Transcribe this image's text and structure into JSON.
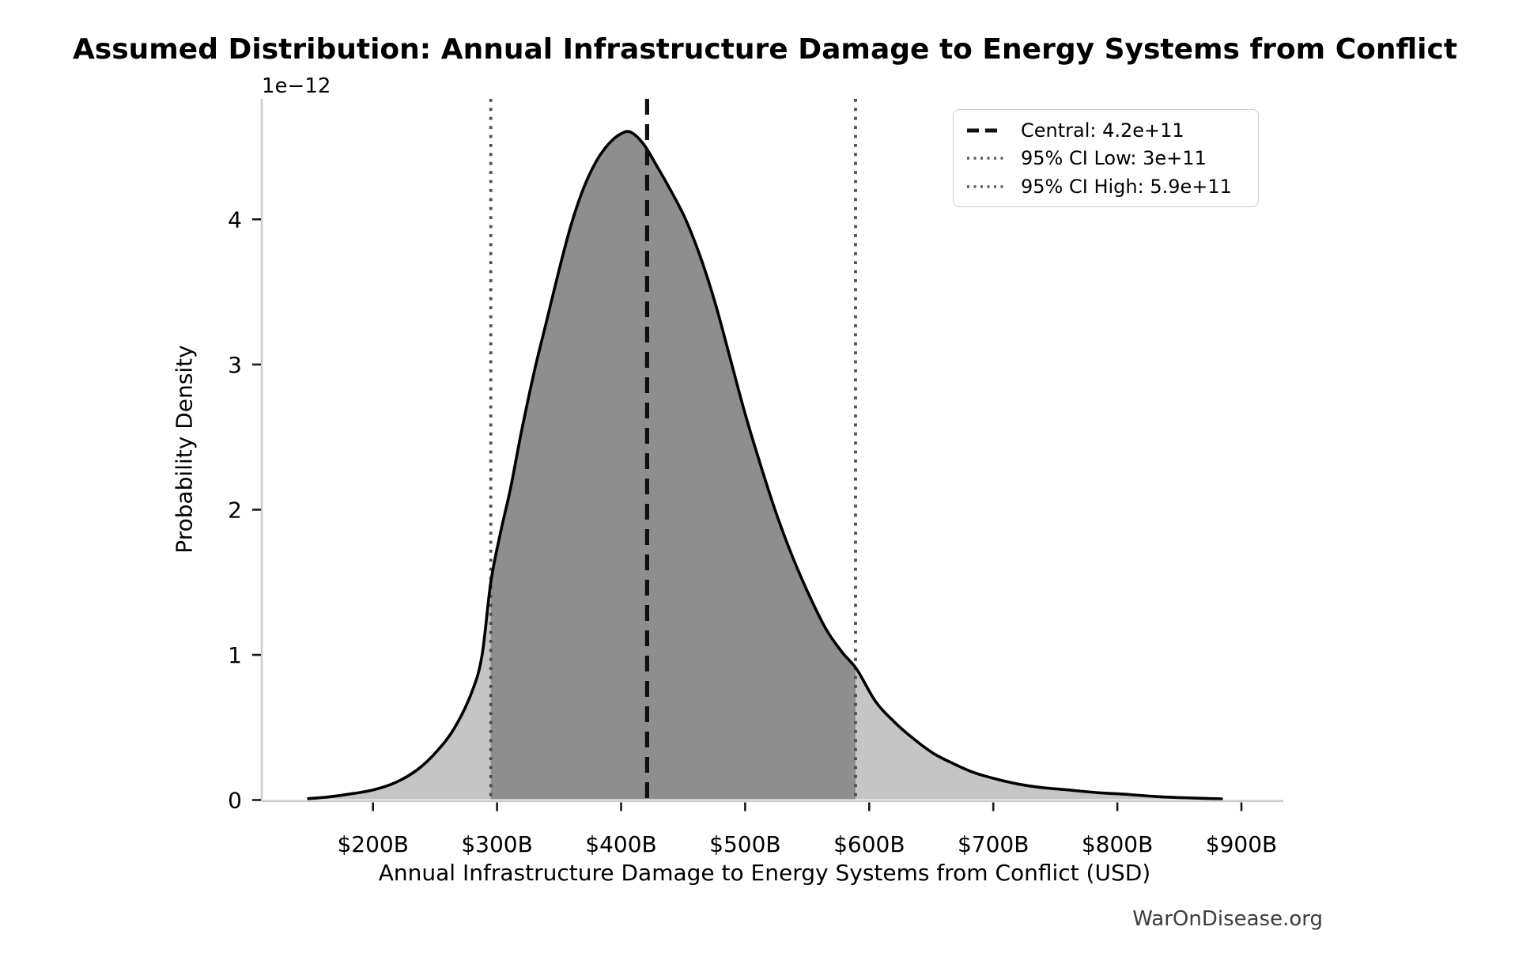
{
  "title": "Assumed Distribution: Annual Infrastructure Damage to Energy Systems from Conflict",
  "watermark": "WarOnDisease.org",
  "axes": {
    "xlabel": "Annual Infrastructure Damage to Energy Systems from Conflict (USD)",
    "ylabel": "Probability Density",
    "y_offset_label": "1e−12"
  },
  "legend": {
    "items": [
      {
        "label": "Central: 4.2e+11",
        "style": "dashed",
        "color": "#111111"
      },
      {
        "label": "95% CI Low: 3e+11",
        "style": "dotted",
        "color": "#5a5a5a"
      },
      {
        "label": "95% CI High: 5.9e+11",
        "style": "dotted",
        "color": "#5a5a5a"
      }
    ],
    "position": "upper right"
  },
  "chart_data": {
    "type": "area",
    "title": "Assumed Distribution: Annual Infrastructure Damage to Energy Systems from Conflict",
    "xlabel": "Annual Infrastructure Damage to Energy Systems from Conflict (USD)",
    "ylabel": "Probability Density",
    "y_scale_factor": "1e-12",
    "grid": false,
    "legend_position": "upper right",
    "xlim_usd_billions": [
      111,
      921
    ],
    "ylim_density_1e12": [
      0,
      4.83
    ],
    "x_ticks": [
      {
        "value": 200,
        "label": "$200B"
      },
      {
        "value": 300,
        "label": "$300B"
      },
      {
        "value": 400,
        "label": "$400B"
      },
      {
        "value": 500,
        "label": "$500B"
      },
      {
        "value": 600,
        "label": "$600B"
      },
      {
        "value": 700,
        "label": "$700B"
      },
      {
        "value": 800,
        "label": "$800B"
      },
      {
        "value": 900,
        "label": "$900B"
      }
    ],
    "y_ticks": [
      {
        "value": 0,
        "label": "0"
      },
      {
        "value": 1,
        "label": "1"
      },
      {
        "value": 2,
        "label": "2"
      },
      {
        "value": 3,
        "label": "3"
      },
      {
        "value": 4,
        "label": "4"
      }
    ],
    "curve": {
      "x_usd_billions": [
        148,
        163,
        180,
        200,
        218,
        236,
        252,
        266,
        280,
        288,
        295,
        303,
        311,
        320,
        330,
        340,
        350,
        360,
        370,
        380,
        390,
        400,
        408,
        418,
        428,
        440,
        452,
        464,
        476,
        488,
        500,
        512,
        524,
        537,
        550,
        565,
        578,
        590,
        605,
        620,
        636,
        652,
        668,
        684,
        700,
        720,
        740,
        760,
        785,
        806,
        830,
        855,
        884
      ],
      "density_1e12": [
        0.01,
        0.02,
        0.04,
        0.07,
        0.12,
        0.21,
        0.34,
        0.5,
        0.75,
        1.0,
        1.5,
        1.85,
        2.15,
        2.55,
        2.95,
        3.3,
        3.65,
        3.97,
        4.22,
        4.4,
        4.52,
        4.59,
        4.6,
        4.52,
        4.38,
        4.2,
        4.0,
        3.74,
        3.42,
        3.04,
        2.66,
        2.32,
        2.0,
        1.7,
        1.44,
        1.18,
        1.02,
        0.9,
        0.68,
        0.54,
        0.42,
        0.32,
        0.25,
        0.19,
        0.15,
        0.11,
        0.085,
        0.07,
        0.05,
        0.04,
        0.025,
        0.015,
        0.008
      ]
    },
    "markers": {
      "central": {
        "label": "Central: 4.2e+11",
        "x_usd_billions": 421
      },
      "ci_low": {
        "label": "95% CI Low: 3e+11",
        "x_usd_billions": 295
      },
      "ci_high": {
        "label": "95% CI High: 5.9e+11",
        "x_usd_billions": 589
      }
    },
    "colors": {
      "curve": "#000000",
      "fill_light": "#c5c5c5",
      "fill_dark": "#8e8e8e",
      "central_line": "#111111",
      "ci_line": "#4f4f4f",
      "spine": "#cccccc",
      "tick": "#1a1a1a"
    }
  }
}
